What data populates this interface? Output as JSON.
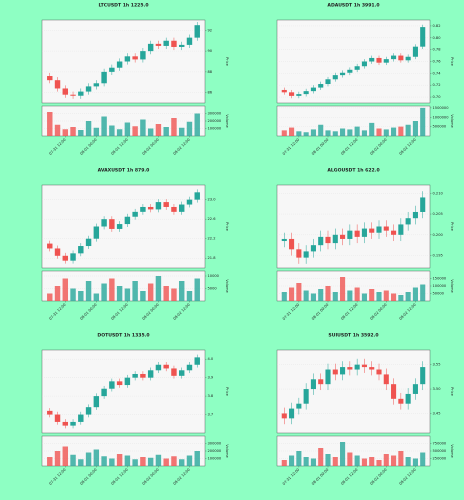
{
  "chart_data": [
    {
      "type": "candlestick",
      "title": "LTCUSDT 1h 1225.0",
      "ylabel": "Price",
      "vlabel": "Volume",
      "categories": [
        null,
        null,
        "07-31 12:00",
        null,
        null,
        null,
        "08-01 00:00",
        null,
        null,
        null,
        "08-01 12:00",
        null,
        null,
        null,
        "08-02 00:00",
        null,
        null,
        null,
        "08-02 12:00",
        null
      ],
      "open": [
        87.6,
        87.2,
        86.4,
        85.8,
        85.7,
        86.1,
        86.6,
        86.9,
        88.0,
        88.4,
        89.0,
        89.5,
        89.2,
        90.0,
        90.7,
        90.5,
        91.0,
        90.4,
        90.6,
        91.3
      ],
      "high": [
        87.9,
        87.5,
        86.7,
        86.1,
        86.4,
        86.9,
        87.2,
        88.3,
        88.7,
        89.3,
        89.8,
        89.8,
        90.3,
        91.0,
        91.0,
        91.3,
        91.3,
        90.9,
        91.6,
        92.8
      ],
      "low": [
        86.9,
        86.1,
        85.5,
        85.4,
        85.4,
        85.8,
        86.3,
        86.6,
        87.7,
        88.1,
        88.7,
        88.9,
        88.9,
        89.7,
        90.2,
        90.2,
        90.1,
        90.1,
        90.3,
        91.0
      ],
      "close": [
        87.2,
        86.4,
        85.8,
        85.7,
        86.1,
        86.6,
        86.9,
        88.0,
        88.4,
        89.0,
        89.5,
        89.2,
        90.0,
        90.7,
        90.5,
        91.0,
        90.4,
        90.6,
        91.3,
        92.5
      ],
      "volume": [
        320000,
        150000,
        90000,
        120000,
        80000,
        200000,
        110000,
        260000,
        140000,
        90000,
        180000,
        130000,
        220000,
        100000,
        160000,
        120000,
        240000,
        110000,
        190000,
        300000
      ],
      "ylim": [
        85,
        93
      ],
      "yticks": [
        86,
        88,
        90,
        92
      ],
      "vlim": [
        0,
        400000
      ],
      "vticks": [
        100000,
        200000,
        300000
      ],
      "up_color": "#26a69a",
      "down_color": "#ef5350",
      "grid": true
    },
    {
      "type": "candlestick",
      "title": "ADAUSDT 1h 3991.0",
      "ylabel": "Price",
      "vlabel": "Volume",
      "categories": [
        null,
        null,
        "07-31 12:00",
        null,
        null,
        null,
        "08-01 00:00",
        null,
        null,
        null,
        "08-01 12:00",
        null,
        null,
        null,
        "08-02 00:00",
        null,
        null,
        null,
        "08-02 12:00",
        null
      ],
      "open": [
        0.712,
        0.708,
        0.702,
        0.705,
        0.71,
        0.716,
        0.722,
        0.73,
        0.737,
        0.741,
        0.746,
        0.752,
        0.76,
        0.766,
        0.758,
        0.764,
        0.77,
        0.762,
        0.768,
        0.785
      ],
      "high": [
        0.716,
        0.712,
        0.709,
        0.714,
        0.72,
        0.726,
        0.734,
        0.741,
        0.745,
        0.75,
        0.756,
        0.764,
        0.77,
        0.77,
        0.768,
        0.774,
        0.774,
        0.772,
        0.789,
        0.822
      ],
      "low": [
        0.704,
        0.698,
        0.698,
        0.701,
        0.706,
        0.712,
        0.718,
        0.726,
        0.733,
        0.737,
        0.742,
        0.748,
        0.756,
        0.754,
        0.754,
        0.76,
        0.758,
        0.758,
        0.764,
        0.781
      ],
      "close": [
        0.708,
        0.702,
        0.705,
        0.71,
        0.716,
        0.722,
        0.73,
        0.737,
        0.741,
        0.746,
        0.752,
        0.76,
        0.766,
        0.758,
        0.764,
        0.77,
        0.762,
        0.768,
        0.785,
        0.818
      ],
      "volume": [
        300000,
        450000,
        250000,
        200000,
        350000,
        600000,
        300000,
        250000,
        400000,
        350000,
        500000,
        300000,
        700000,
        400000,
        350000,
        450000,
        500000,
        600000,
        800000,
        1500000
      ],
      "ylim": [
        0.69,
        0.83
      ],
      "yticks": [
        {
          "value": 0.7,
          "label": "0.70"
        },
        0.72,
        0.74,
        0.76,
        0.78,
        {
          "value": 0.8,
          "label": "0.80"
        },
        0.82
      ],
      "vlim": [
        0,
        1600000
      ],
      "vticks": [
        500000,
        1000000,
        1500000
      ],
      "up_color": "#26a69a",
      "down_color": "#ef5350",
      "grid": true
    },
    {
      "type": "candlestick",
      "title": "AVAXUSDT 1h 879.0",
      "ylabel": "Price",
      "vlabel": "Volume",
      "categories": [
        null,
        null,
        "07-31 12:00",
        null,
        null,
        null,
        "08-01 00:00",
        null,
        null,
        null,
        "08-01 12:00",
        null,
        null,
        null,
        "08-02 00:00",
        null,
        null,
        null,
        "08-02 12:00",
        null
      ],
      "open": [
        22.1,
        22.0,
        21.85,
        21.75,
        21.9,
        22.05,
        22.2,
        22.45,
        22.6,
        22.4,
        22.5,
        22.65,
        22.75,
        22.85,
        22.8,
        22.95,
        22.85,
        22.75,
        22.9,
        23.0
      ],
      "high": [
        22.16,
        22.06,
        21.91,
        21.96,
        22.11,
        22.26,
        22.51,
        22.66,
        22.66,
        22.56,
        22.71,
        22.81,
        22.91,
        22.91,
        23.01,
        23.01,
        22.91,
        22.96,
        23.06,
        23.21
      ],
      "low": [
        21.94,
        21.79,
        21.69,
        21.69,
        21.84,
        21.99,
        22.14,
        22.39,
        22.34,
        22.34,
        22.44,
        22.59,
        22.69,
        22.74,
        22.74,
        22.79,
        22.69,
        22.69,
        22.84,
        22.94
      ],
      "close": [
        22.0,
        21.85,
        21.75,
        21.9,
        22.05,
        22.2,
        22.45,
        22.6,
        22.4,
        22.5,
        22.65,
        22.75,
        22.85,
        22.8,
        22.95,
        22.85,
        22.75,
        22.9,
        23.0,
        23.15
      ],
      "volume": [
        3000,
        6000,
        9000,
        5000,
        4000,
        8000,
        3000,
        7000,
        9000,
        6000,
        5000,
        8000,
        4000,
        7000,
        10000,
        6000,
        5000,
        8000,
        4000,
        9000
      ],
      "ylim": [
        21.6,
        23.3
      ],
      "yticks": [
        21.8,
        22.2,
        22.6,
        {
          "value": 23,
          "label": "23.0"
        }
      ],
      "vlim": [
        0,
        12000
      ],
      "vticks": [
        5000,
        10000
      ],
      "up_color": "#26a69a",
      "down_color": "#ef5350",
      "grid": true
    },
    {
      "type": "candlestick",
      "title": "ALGOUSDT 1h 622.0",
      "ylabel": "Price",
      "vlabel": "Volume",
      "categories": [
        null,
        null,
        "07-31 12:00",
        null,
        null,
        null,
        "08-01 00:00",
        null,
        null,
        null,
        "08-01 12:00",
        null,
        null,
        null,
        "08-02 00:00",
        null,
        null,
        null,
        "08-02 12:00",
        null
      ],
      "open": [
        0.1985,
        0.199,
        0.1965,
        0.1945,
        0.196,
        0.1975,
        0.1995,
        0.198,
        0.2,
        0.199,
        0.201,
        0.1995,
        0.2015,
        0.2005,
        0.202,
        0.201,
        0.2,
        0.2025,
        0.204,
        0.2055
      ],
      "high": [
        0.2005,
        0.2005,
        0.198,
        0.1975,
        0.199,
        0.201,
        0.201,
        0.2015,
        0.2015,
        0.2025,
        0.2025,
        0.203,
        0.203,
        0.2035,
        0.2035,
        0.2025,
        0.204,
        0.2055,
        0.207,
        0.2105
      ],
      "low": [
        0.197,
        0.195,
        0.193,
        0.193,
        0.1945,
        0.196,
        0.1965,
        0.1965,
        0.1975,
        0.1975,
        0.198,
        0.198,
        0.199,
        0.199,
        0.1995,
        0.1985,
        0.1985,
        0.201,
        0.2025,
        0.204
      ],
      "close": [
        0.199,
        0.1965,
        0.1945,
        0.196,
        0.1975,
        0.1995,
        0.198,
        0.2,
        0.199,
        0.201,
        0.1995,
        0.2015,
        0.2005,
        0.202,
        0.201,
        0.2,
        0.2025,
        0.204,
        0.2055,
        0.209
      ],
      "volume": [
        60000,
        90000,
        120000,
        70000,
        50000,
        80000,
        100000,
        60000,
        160000,
        70000,
        90000,
        50000,
        80000,
        60000,
        70000,
        50000,
        40000,
        60000,
        90000,
        110000
      ],
      "ylim": [
        0.192,
        0.212
      ],
      "yticks": [
        0.195,
        {
          "value": 0.2,
          "label": "0.200"
        },
        0.205,
        {
          "value": 0.21,
          "label": "0.210"
        }
      ],
      "vlim": [
        0,
        200000
      ],
      "vticks": [
        50000,
        100000,
        150000
      ],
      "up_color": "#26a69a",
      "down_color": "#ef5350",
      "grid": true
    },
    {
      "type": "candlestick",
      "title": "DOTUSDT 1h 1335.0",
      "ylabel": "Price",
      "vlabel": "Volume",
      "categories": [
        null,
        null,
        "07-31 12:00",
        null,
        null,
        null,
        "08-01 00:00",
        null,
        null,
        null,
        "08-01 12:00",
        null,
        null,
        null,
        "08-02 00:00",
        null,
        null,
        null,
        "08-02 12:00",
        null
      ],
      "open": [
        3.72,
        3.7,
        3.66,
        3.64,
        3.66,
        3.7,
        3.74,
        3.8,
        3.84,
        3.88,
        3.86,
        3.9,
        3.92,
        3.9,
        3.94,
        3.97,
        3.95,
        3.91,
        3.94,
        3.97
      ],
      "high": [
        3.735,
        3.715,
        3.675,
        3.675,
        3.715,
        3.755,
        3.815,
        3.855,
        3.895,
        3.895,
        3.915,
        3.935,
        3.935,
        3.955,
        3.985,
        3.985,
        3.965,
        3.955,
        3.985,
        4.025
      ],
      "low": [
        3.685,
        3.645,
        3.625,
        3.625,
        3.645,
        3.685,
        3.725,
        3.785,
        3.825,
        3.845,
        3.845,
        3.885,
        3.885,
        3.885,
        3.925,
        3.935,
        3.895,
        3.895,
        3.925,
        3.955
      ],
      "close": [
        3.7,
        3.66,
        3.64,
        3.66,
        3.7,
        3.74,
        3.8,
        3.84,
        3.88,
        3.86,
        3.9,
        3.92,
        3.9,
        3.94,
        3.97,
        3.95,
        3.91,
        3.94,
        3.97,
        4.01
      ],
      "volume": [
        120000,
        200000,
        260000,
        150000,
        90000,
        180000,
        220000,
        130000,
        100000,
        160000,
        140000,
        90000,
        120000,
        110000,
        150000,
        100000,
        130000,
        90000,
        140000,
        200000
      ],
      "ylim": [
        3.6,
        4.05
      ],
      "yticks": [
        3.7,
        3.8,
        3.9,
        {
          "value": 4,
          "label": "4.0"
        }
      ],
      "vlim": [
        0,
        400000
      ],
      "vticks": [
        100000,
        200000,
        300000
      ],
      "up_color": "#26a69a",
      "down_color": "#ef5350",
      "grid": true
    },
    {
      "type": "candlestick",
      "title": "SUIUSDT 1h 3592.0",
      "ylabel": "Price",
      "vlabel": "Volume",
      "categories": [
        null,
        null,
        "07-31 12:00",
        null,
        null,
        null,
        "08-01 00:00",
        null,
        null,
        null,
        "08-01 12:00",
        null,
        null,
        null,
        "08-02 00:00",
        null,
        null,
        null,
        "08-02 12:00",
        null
      ],
      "open": [
        3.45,
        3.44,
        3.46,
        3.47,
        3.5,
        3.52,
        3.51,
        3.54,
        3.53,
        3.545,
        3.54,
        3.55,
        3.545,
        3.54,
        3.53,
        3.51,
        3.48,
        3.47,
        3.49,
        3.51
      ],
      "high": [
        3.462,
        3.472,
        3.482,
        3.512,
        3.532,
        3.532,
        3.552,
        3.552,
        3.557,
        3.557,
        3.562,
        3.562,
        3.557,
        3.552,
        3.542,
        3.522,
        3.492,
        3.502,
        3.522,
        3.557
      ],
      "low": [
        3.428,
        3.428,
        3.448,
        3.458,
        3.488,
        3.498,
        3.498,
        3.518,
        3.518,
        3.528,
        3.528,
        3.533,
        3.528,
        3.518,
        3.498,
        3.468,
        3.458,
        3.458,
        3.478,
        3.498
      ],
      "close": [
        3.44,
        3.46,
        3.47,
        3.5,
        3.52,
        3.51,
        3.54,
        3.53,
        3.545,
        3.54,
        3.55,
        3.545,
        3.54,
        3.53,
        3.51,
        3.48,
        3.47,
        3.49,
        3.51,
        3.545
      ],
      "volume": [
        200000,
        350000,
        500000,
        300000,
        250000,
        600000,
        400000,
        300000,
        800000,
        450000,
        350000,
        250000,
        300000,
        200000,
        400000,
        350000,
        500000,
        300000,
        250000,
        450000
      ],
      "ylim": [
        3.41,
        3.58
      ],
      "yticks": [
        3.45,
        {
          "value": 3.5,
          "label": "3.50"
        },
        3.55
      ],
      "vlim": [
        0,
        1000000
      ],
      "vticks": [
        250000,
        500000,
        750000
      ],
      "up_color": "#26a69a",
      "down_color": "#ef5350",
      "grid": true
    }
  ]
}
